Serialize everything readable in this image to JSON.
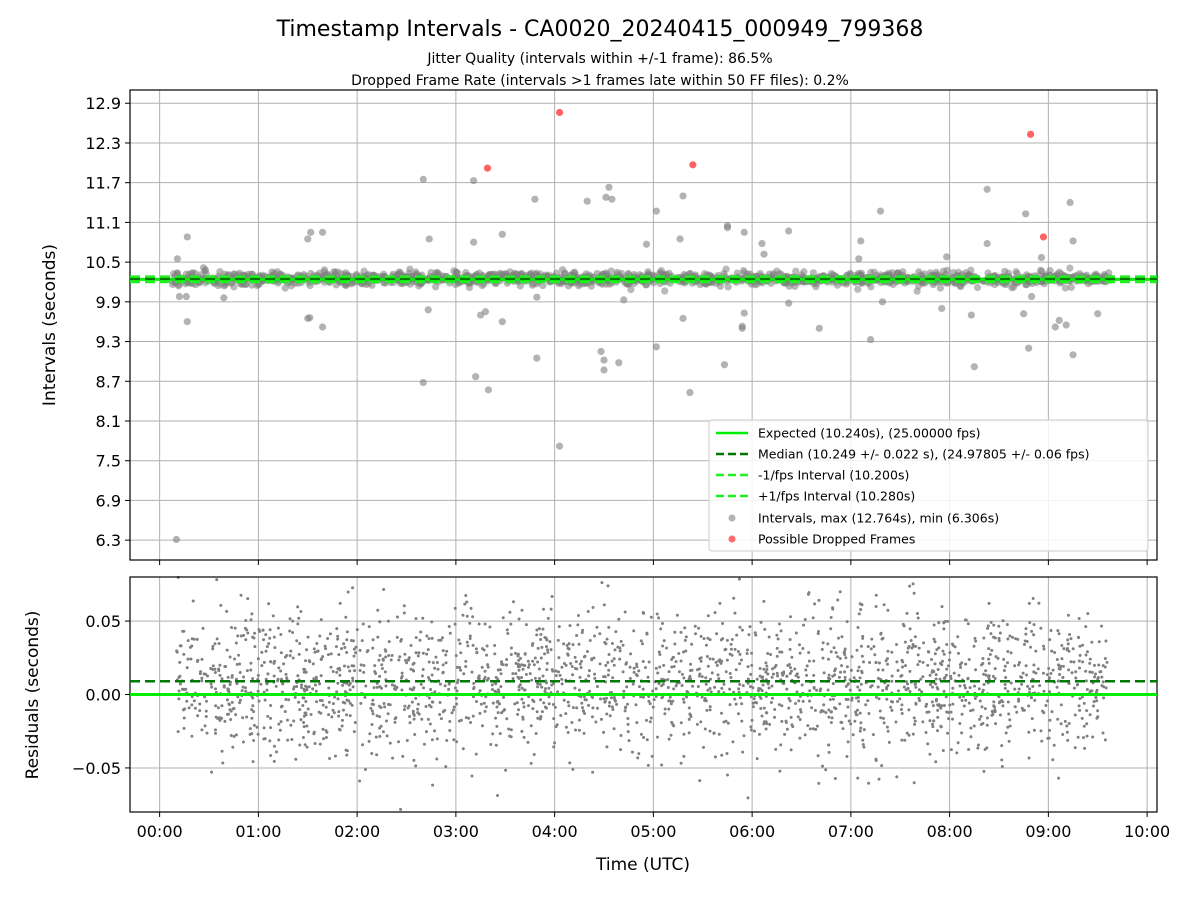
{
  "figure": {
    "title": "Timestamp Intervals - CA0020_20240415_000949_799368",
    "subtitle_1": "Jitter Quality (intervals within +/-1 frame): 86.5%",
    "subtitle_2": "Dropped Frame Rate (intervals >1 frames late within 50 FF files): 0.2%"
  },
  "colors": {
    "expected": "#00ee00",
    "median": "#007700",
    "bound": "#22ee22",
    "points": "#808080",
    "dropped": "#ff3b3b",
    "grid": "#b0b0b0"
  },
  "chart_data": [
    {
      "type": "scatter",
      "ylabel": "Intervals (seconds)",
      "xlim": [
        -0.3,
        10.1
      ],
      "ylim": [
        6.0,
        13.1
      ],
      "yticks": [
        6.3,
        6.9,
        7.5,
        8.1,
        8.7,
        9.3,
        9.9,
        10.5,
        11.1,
        11.7,
        12.3,
        12.9
      ],
      "ytick_labels": [
        "6.3",
        "6.9",
        "7.5",
        "8.1",
        "8.7",
        "9.3",
        "9.9",
        "10.5",
        "11.1",
        "11.7",
        "12.3",
        "12.9"
      ],
      "grid": true,
      "legend_position": "lower-right",
      "reference_lines": [
        {
          "name": "Expected (10.240s), (25.00000 fps)",
          "y": 10.24,
          "style": "solid",
          "color": "#00ee00"
        },
        {
          "name": "Median (10.249 +/- 0.022 s), (24.97805 +/- 0.06 fps)",
          "y": 10.249,
          "style": "dashed",
          "color": "#007700"
        },
        {
          "name": "-1/fps Interval (10.200s)",
          "y": 10.2,
          "style": "dashed",
          "color": "#22ee22"
        },
        {
          "name": "+1/fps Interval (10.280s)",
          "y": 10.28,
          "style": "dashed",
          "color": "#22ee22"
        }
      ],
      "series": [
        {
          "name": "Intervals, max (12.764s), min (6.306s)",
          "color": "#808080",
          "outliers_x": [
            0.17,
            0.2,
            0.28,
            0.28,
            0.18,
            0.27,
            0.65,
            1.5,
            1.53,
            1.5,
            1.52,
            1.65,
            1.65,
            2.67,
            2.73,
            2.72,
            2.67,
            3.18,
            3.18,
            3.25,
            3.3,
            3.2,
            3.33,
            3.47,
            3.47,
            3.8,
            3.82,
            3.82,
            4.05,
            4.33,
            4.47,
            4.5,
            4.52,
            4.55,
            4.5,
            4.58,
            4.65,
            4.7,
            4.93,
            5.03,
            5.03,
            5.27,
            5.3,
            5.3,
            5.37,
            5.72,
            5.75,
            5.75,
            5.9,
            5.9,
            5.92,
            5.92,
            6.1,
            6.12,
            6.37,
            6.37,
            6.68,
            7.08,
            7.1,
            7.2,
            7.3,
            7.32,
            7.92,
            7.97,
            8.22,
            8.25,
            8.38,
            8.38,
            8.75,
            8.8,
            8.77,
            8.83,
            8.93,
            9.07,
            9.11,
            9.18,
            9.22,
            9.25,
            9.25,
            9.5
          ],
          "outliers_y": [
            6.31,
            9.98,
            10.88,
            9.6,
            10.55,
            9.98,
            9.96,
            9.65,
            10.95,
            10.85,
            9.66,
            10.95,
            9.52,
            11.75,
            10.85,
            9.78,
            8.68,
            11.73,
            10.8,
            9.7,
            9.75,
            8.77,
            8.57,
            10.92,
            9.6,
            11.45,
            9.05,
            9.97,
            7.72,
            11.42,
            9.15,
            9.02,
            11.48,
            11.63,
            8.87,
            11.45,
            8.98,
            9.93,
            10.77,
            11.27,
            9.22,
            10.85,
            11.5,
            9.65,
            8.53,
            8.95,
            11.05,
            11.02,
            9.53,
            9.5,
            9.73,
            10.95,
            10.78,
            10.62,
            9.88,
            10.97,
            9.5,
            10.55,
            10.82,
            9.33,
            11.27,
            9.9,
            9.8,
            10.58,
            9.7,
            8.92,
            11.6,
            10.78,
            9.72,
            9.2,
            11.23,
            9.98,
            10.57,
            9.52,
            9.62,
            9.55,
            11.4,
            9.1,
            10.82,
            9.72
          ],
          "dense_band": {
            "x_range": [
              0.13,
              9.63
            ],
            "y_center": 10.25,
            "y_spread": 0.05,
            "points_per_hour": 150
          }
        },
        {
          "name": "Possible Dropped Frames",
          "color": "#ff3b3b",
          "x": [
            3.32,
            4.05,
            5.4,
            8.82,
            8.95
          ],
          "y": [
            11.92,
            12.76,
            11.97,
            12.43,
            10.88
          ]
        }
      ]
    },
    {
      "type": "scatter",
      "ylabel": "Residuals (seconds)",
      "xlabel": "Time (UTC)",
      "xlim": [
        -0.3,
        10.1
      ],
      "ylim": [
        -0.08,
        0.08
      ],
      "yticks": [
        -0.05,
        0.0,
        0.05
      ],
      "ytick_labels": [
        "−0.05",
        "0.00",
        "0.05"
      ],
      "xticks": [
        0,
        1,
        2,
        3,
        4,
        5,
        6,
        7,
        8,
        9,
        10
      ],
      "xtick_labels": [
        "00:00",
        "01:00",
        "02:00",
        "03:00",
        "04:00",
        "05:00",
        "06:00",
        "07:00",
        "08:00",
        "09:00",
        "10:00"
      ],
      "grid": true,
      "reference_lines": [
        {
          "y": 0.0,
          "style": "solid",
          "color": "#00ee00"
        },
        {
          "y": 0.009,
          "style": "dashed",
          "color": "#007700"
        }
      ],
      "series": [
        {
          "color": "#808080",
          "x_range": [
            0.17,
            9.6
          ],
          "y_mean": 0.009,
          "y_spread": 0.025,
          "point_count": 2300
        }
      ]
    }
  ]
}
